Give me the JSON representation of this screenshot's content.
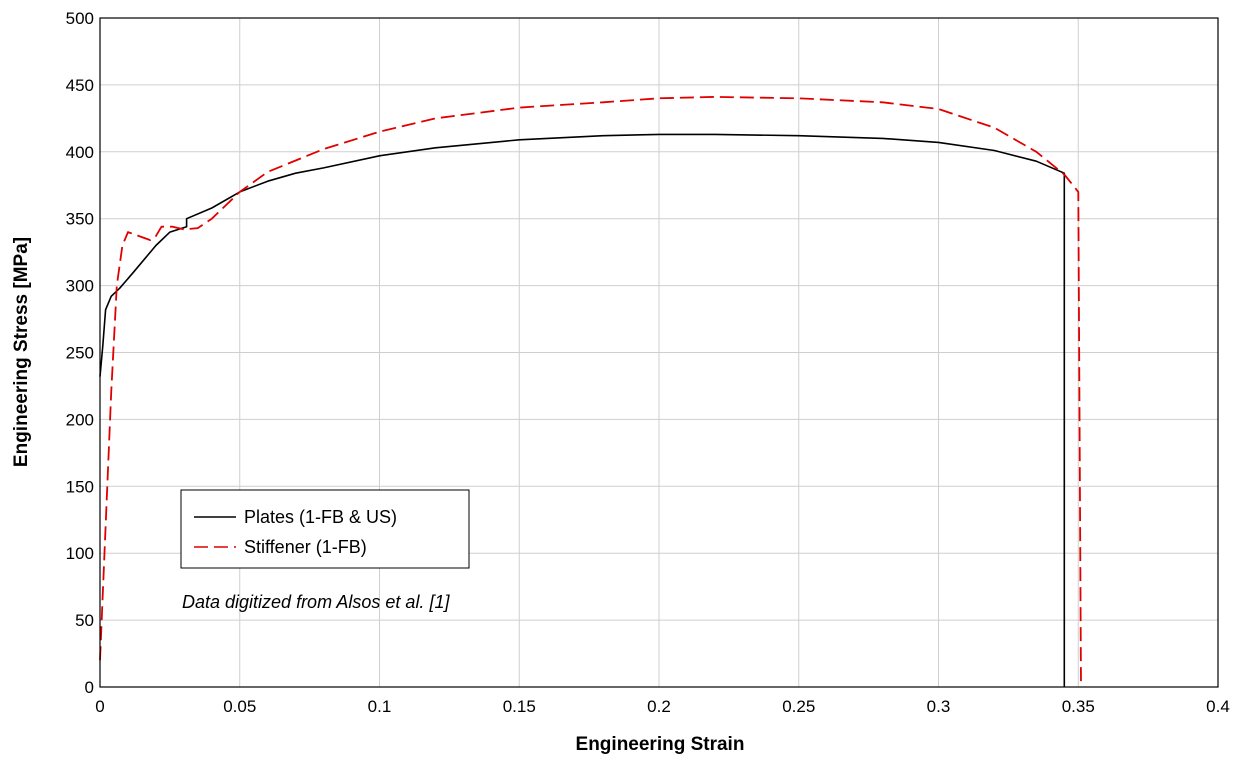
{
  "chart_data": {
    "type": "line",
    "xlabel": "Engineering Strain",
    "ylabel": "Engineering Stress [MPa]",
    "xlim": [
      0,
      0.4
    ],
    "ylim": [
      0,
      500
    ],
    "xticks": [
      "0",
      "0.05",
      "0.1",
      "0.15",
      "0.2",
      "0.25",
      "0.3",
      "0.35",
      "0.4"
    ],
    "yticks": [
      "0",
      "50",
      "100",
      "150",
      "200",
      "250",
      "300",
      "350",
      "400",
      "450",
      "500"
    ],
    "grid": true,
    "legend_position": "bottom-left",
    "annotation": "Data digitized from Alsos et al. [1]",
    "series": [
      {
        "name": "Plates (1-FB & US)",
        "color": "#000000",
        "style": "solid",
        "x": [
          0,
          0.001,
          0.002,
          0.004,
          0.007,
          0.012,
          0.02,
          0.025,
          0.031,
          0.031,
          0.04,
          0.05,
          0.06,
          0.07,
          0.08,
          0.1,
          0.12,
          0.15,
          0.18,
          0.2,
          0.22,
          0.25,
          0.28,
          0.3,
          0.32,
          0.335,
          0.345,
          0.345
        ],
        "y": [
          232,
          255,
          282,
          292,
          298,
          310,
          330,
          340,
          344,
          350,
          358,
          370,
          378,
          384,
          388,
          397,
          403,
          409,
          412,
          413,
          413,
          412,
          410,
          407,
          401,
          393,
          384,
          0
        ]
      },
      {
        "name": "Stiffener (1-FB)",
        "color": "#e00000",
        "style": "dashed",
        "x": [
          0,
          0.002,
          0.004,
          0.006,
          0.008,
          0.01,
          0.014,
          0.018,
          0.02,
          0.022,
          0.026,
          0.03,
          0.035,
          0.04,
          0.05,
          0.06,
          0.08,
          0.1,
          0.12,
          0.15,
          0.18,
          0.2,
          0.22,
          0.25,
          0.28,
          0.3,
          0.32,
          0.335,
          0.345,
          0.35,
          0.351
        ],
        "y": [
          20,
          120,
          220,
          300,
          330,
          340,
          337,
          334,
          337,
          344,
          344,
          342,
          343,
          350,
          370,
          385,
          402,
          415,
          425,
          433,
          437,
          440,
          441,
          440,
          437,
          432,
          418,
          400,
          383,
          370,
          0
        ]
      }
    ]
  }
}
